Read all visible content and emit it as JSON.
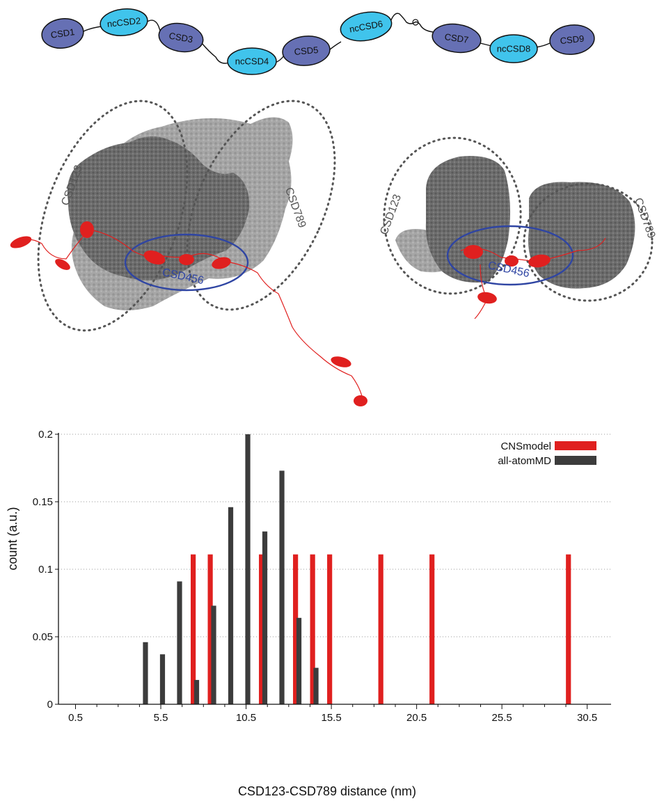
{
  "domain_diagram": {
    "domains": [
      {
        "label": "CSD1",
        "type": "csd"
      },
      {
        "label": "ncCSD2",
        "type": "nccsd"
      },
      {
        "label": "CSD3",
        "type": "csd"
      },
      {
        "label": "ncCSD4",
        "type": "nccsd"
      },
      {
        "label": "CSD5",
        "type": "csd"
      },
      {
        "label": "ncCSD6",
        "type": "nccsd"
      },
      {
        "label": "CSD7",
        "type": "csd"
      },
      {
        "label": "ncCSD8",
        "type": "nccsd"
      },
      {
        "label": "CSD9",
        "type": "csd"
      }
    ],
    "colors": {
      "csd": "#6670b4",
      "nccsd": "#40c4ec",
      "outline": "#111111"
    }
  },
  "structures": {
    "left": {
      "labels": {
        "group1": "CSD123",
        "group2": "CSD789",
        "center": "CSD456"
      }
    },
    "right": {
      "labels": {
        "group1": "CSD123",
        "group2": "CSD789",
        "center": "CSD456"
      }
    },
    "colors": {
      "surface_dark": "#6e6e6e",
      "surface_light": "#a9a9a9",
      "ribbon": "#e0201f",
      "center_circle": "#2f45a3",
      "dotted": "#555555"
    }
  },
  "chart_data": {
    "type": "bar",
    "xlabel": "CSD123-CSD789 distance (nm)",
    "ylabel": "count (a.u.)",
    "xlim": [
      -0.5,
      31.9
    ],
    "ylim": [
      0,
      0.2
    ],
    "xticks": [
      0.5,
      5.5,
      10.5,
      15.5,
      20.5,
      25.5,
      30.5
    ],
    "yticks": [
      0,
      0.05,
      0.1,
      0.15,
      0.2
    ],
    "ytick_labels": [
      "0",
      "0.05",
      "0.1",
      "0.15",
      "0.2"
    ],
    "grid": {
      "y": true,
      "style": "dotted"
    },
    "legend_position": "top-right",
    "series": [
      {
        "name": "CNSmodel",
        "color": "#e0201f",
        "x": [
          7.4,
          8.4,
          11.4,
          13.4,
          14.4,
          15.4,
          18.4,
          21.4,
          29.4
        ],
        "values": [
          0.111,
          0.111,
          0.111,
          0.111,
          0.111,
          0.111,
          0.111,
          0.111,
          0.111
        ]
      },
      {
        "name": "all-atomMD",
        "color": "#3c3c3c",
        "x": [
          4.6,
          5.6,
          6.6,
          7.6,
          8.6,
          9.6,
          10.6,
          11.6,
          12.6,
          13.6,
          14.6
        ],
        "values": [
          0.046,
          0.037,
          0.091,
          0.018,
          0.073,
          0.146,
          0.2,
          0.128,
          0.173,
          0.064,
          0.027
        ]
      }
    ]
  }
}
